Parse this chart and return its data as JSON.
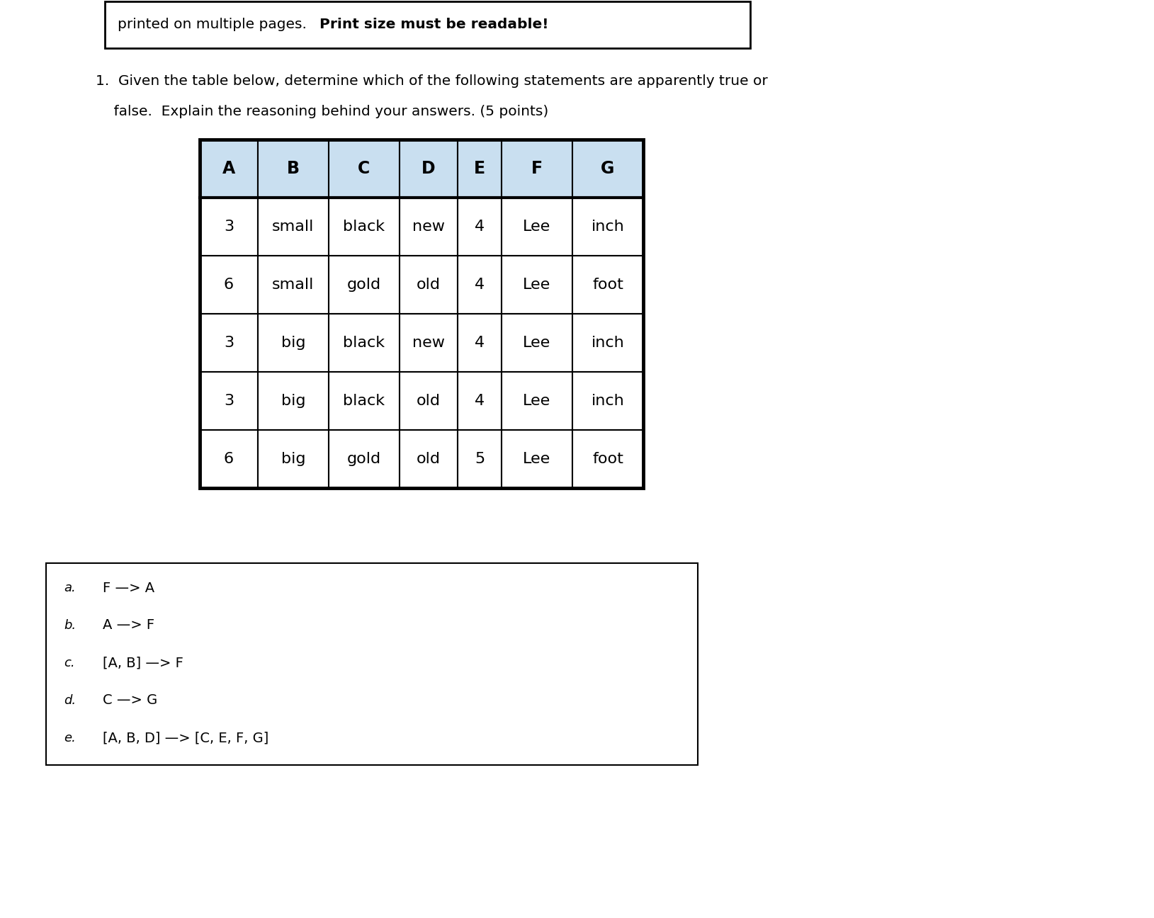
{
  "header_text": "printed on multiple pages. ",
  "header_bold": "Print size must be readable!",
  "question_line1_normal": "1.  Given the table below, determine which of the following statements are apparently true or",
  "question_line2_normal": "    false.  Explain the reasoning behind your answers. (5 points)",
  "table_headers": [
    "A",
    "B",
    "C",
    "D",
    "E",
    "F",
    "G"
  ],
  "table_data": [
    [
      "3",
      "small",
      "black",
      "new",
      "4",
      "Lee",
      "inch"
    ],
    [
      "6",
      "small",
      "gold",
      "old",
      "4",
      "Lee",
      "foot"
    ],
    [
      "3",
      "big",
      "black",
      "new",
      "4",
      "Lee",
      "inch"
    ],
    [
      "3",
      "big",
      "black",
      "old",
      "4",
      "Lee",
      "inch"
    ],
    [
      "6",
      "big",
      "gold",
      "old",
      "5",
      "Lee",
      "foot"
    ]
  ],
  "answers": [
    [
      "a.",
      "F —> A"
    ],
    [
      "b.",
      "A —> F"
    ],
    [
      "c.",
      "[A, B] —> F"
    ],
    [
      "d.",
      "C —> G"
    ],
    [
      "e.",
      "[A, B, D] —> [C, E, F, G]"
    ]
  ],
  "header_bg": "#c9dff0",
  "data_bg": "#ffffff",
  "border_color": "#000000",
  "bg_color": "#ffffff",
  "answer_box_border": "#000000"
}
